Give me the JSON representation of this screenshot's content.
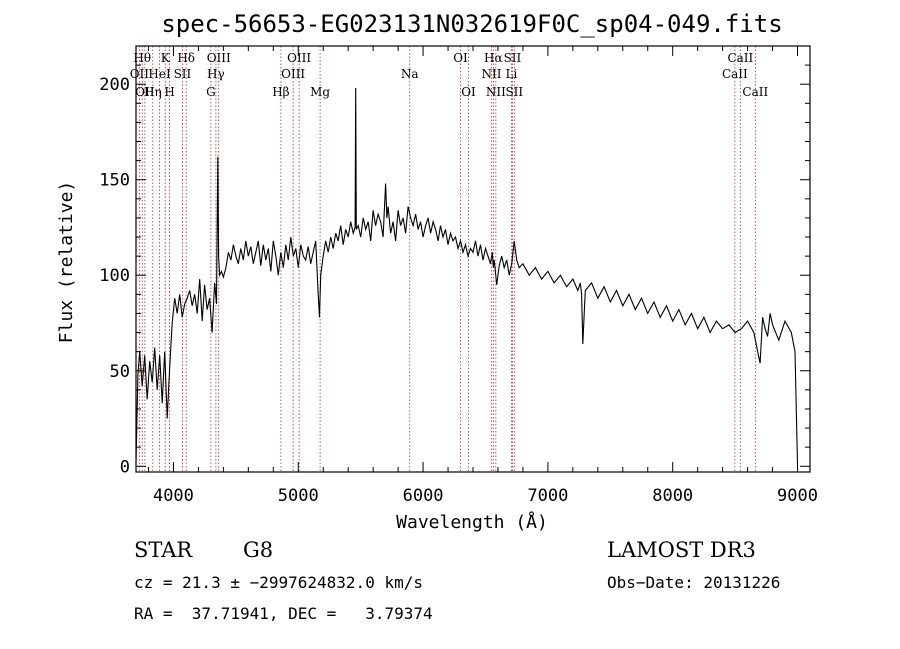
{
  "chart_data": {
    "type": "line",
    "title": "spec-56653-EG023131N032619F0C_sp04-049.fits",
    "xlabel": "Wavelength (Å)",
    "ylabel": "Flux (relative)",
    "xlim": [
      3700,
      9100
    ],
    "ylim": [
      -3,
      220
    ],
    "xticks": [
      4000,
      5000,
      6000,
      7000,
      8000,
      9000
    ],
    "yticks": [
      0,
      50,
      100,
      150,
      200
    ],
    "grid": false,
    "series": [
      {
        "x": [
          3700,
          3715,
          3730,
          3750,
          3770,
          3790,
          3810,
          3830,
          3850,
          3870,
          3890,
          3910,
          3930,
          3950,
          3970,
          3990,
          4010,
          4030,
          4050,
          4070,
          4090,
          4110,
          4130,
          4150,
          4170,
          4190,
          4210,
          4230,
          4250,
          4270,
          4290,
          4310,
          4330,
          4345,
          4355,
          4362,
          4370,
          4385,
          4400,
          4420,
          4440,
          4460,
          4480,
          4500,
          4520,
          4540,
          4560,
          4580,
          4600,
          4620,
          4640,
          4660,
          4680,
          4700,
          4720,
          4740,
          4760,
          4780,
          4800,
          4820,
          4840,
          4860,
          4880,
          4900,
          4920,
          4940,
          4960,
          4980,
          5000,
          5020,
          5040,
          5060,
          5080,
          5100,
          5120,
          5140,
          5160,
          5170,
          5180,
          5200,
          5220,
          5240,
          5260,
          5280,
          5300,
          5320,
          5340,
          5360,
          5380,
          5400,
          5420,
          5440,
          5455,
          5460,
          5465,
          5480,
          5500,
          5520,
          5540,
          5560,
          5580,
          5600,
          5620,
          5640,
          5660,
          5680,
          5700,
          5710,
          5720,
          5740,
          5760,
          5780,
          5800,
          5820,
          5840,
          5860,
          5880,
          5900,
          5920,
          5940,
          5960,
          5980,
          6000,
          6020,
          6040,
          6060,
          6080,
          6100,
          6120,
          6140,
          6160,
          6180,
          6200,
          6220,
          6240,
          6260,
          6280,
          6300,
          6320,
          6340,
          6360,
          6380,
          6400,
          6420,
          6440,
          6460,
          6480,
          6500,
          6520,
          6540,
          6555,
          6563,
          6570,
          6590,
          6610,
          6630,
          6650,
          6670,
          6690,
          6710,
          6730,
          6750,
          6770,
          6800,
          6850,
          6900,
          6950,
          7000,
          7050,
          7100,
          7150,
          7200,
          7240,
          7260,
          7270,
          7280,
          7300,
          7350,
          7400,
          7450,
          7500,
          7550,
          7600,
          7650,
          7700,
          7750,
          7800,
          7850,
          7900,
          7950,
          8000,
          8050,
          8100,
          8150,
          8200,
          8250,
          8300,
          8350,
          8400,
          8450,
          8500,
          8550,
          8600,
          8650,
          8700,
          8720,
          8740,
          8760,
          8780,
          8800,
          8850,
          8900,
          8950,
          8980,
          9000
        ],
        "values": [
          2,
          48,
          60,
          42,
          58,
          35,
          55,
          44,
          62,
          40,
          58,
          33,
          60,
          25,
          52,
          75,
          88,
          80,
          90,
          78,
          85,
          88,
          92,
          84,
          90,
          80,
          98,
          76,
          95,
          82,
          88,
          70,
          96,
          85,
          162,
          110,
          100,
          102,
          99,
          104,
          112,
          108,
          116,
          110,
          106,
          114,
          108,
          118,
          110,
          115,
          106,
          112,
          118,
          105,
          116,
          108,
          114,
          102,
          118,
          110,
          100,
          112,
          104,
          116,
          108,
          120,
          110,
          114,
          104,
          116,
          110,
          108,
          115,
          106,
          112,
          118,
          90,
          78,
          100,
          110,
          118,
          112,
          120,
          114,
          122,
          118,
          126,
          116,
          124,
          120,
          128,
          122,
          125,
          198,
          124,
          126,
          120,
          130,
          124,
          128,
          118,
          134,
          126,
          132,
          128,
          120,
          148,
          130,
          136,
          122,
          128,
          118,
          134,
          126,
          130,
          122,
          136,
          130,
          126,
          132,
          124,
          128,
          120,
          126,
          130,
          122,
          128,
          124,
          118,
          126,
          120,
          124,
          116,
          122,
          118,
          120,
          114,
          118,
          112,
          116,
          110,
          114,
          112,
          118,
          110,
          116,
          108,
          114,
          110,
          106,
          112,
          104,
          108,
          95,
          105,
          110,
          104,
          108,
          100,
          106,
          118,
          108,
          104,
          106,
          100,
          104,
          98,
          102,
          96,
          100,
          94,
          98,
          92,
          96,
          90,
          64,
          92,
          96,
          88,
          94,
          86,
          92,
          84,
          90,
          82,
          88,
          80,
          86,
          78,
          84,
          76,
          82,
          74,
          80,
          72,
          78,
          70,
          76,
          72,
          74,
          70,
          72,
          76,
          70,
          54,
          78,
          72,
          68,
          80,
          74,
          66,
          76,
          70,
          60,
          1
        ]
      }
    ],
    "line_markers": [
      {
        "label": "OII",
        "x": 3727,
        "row": 2
      },
      {
        "label": "Hθ",
        "x": 3750,
        "row": 1
      },
      {
        "label": "OII",
        "x": 3771,
        "row": 3
      },
      {
        "label": "Hη",
        "x": 3835,
        "row": 3
      },
      {
        "label": "HeI",
        "x": 3889,
        "row": 2
      },
      {
        "label": "K",
        "x": 3934,
        "row": 1
      },
      {
        "label": "H",
        "x": 3969,
        "row": 3
      },
      {
        "label": "SII",
        "x": 4072,
        "row": 2
      },
      {
        "label": "Hδ",
        "x": 4102,
        "row": 1
      },
      {
        "label": "G",
        "x": 4300,
        "row": 3
      },
      {
        "label": "Hγ",
        "x": 4340,
        "row": 2
      },
      {
        "label": "OIII",
        "x": 4363,
        "row": 1
      },
      {
        "label": "Hβ",
        "x": 4861,
        "row": 3
      },
      {
        "label": "OIII",
        "x": 4959,
        "row": 2
      },
      {
        "label": "OIII",
        "x": 5007,
        "row": 1
      },
      {
        "label": "Mg",
        "x": 5175,
        "row": 3
      },
      {
        "label": "Na",
        "x": 5893,
        "row": 2
      },
      {
        "label": "OI",
        "x": 6300,
        "row": 1
      },
      {
        "label": "OI",
        "x": 6364,
        "row": 3
      },
      {
        "label": "NII",
        "x": 6548,
        "row": 2
      },
      {
        "label": "Hα",
        "x": 6563,
        "row": 1
      },
      {
        "label": "NII",
        "x": 6583,
        "row": 3
      },
      {
        "label": "Li",
        "x": 6708,
        "row": 2
      },
      {
        "label": "SII",
        "x": 6716,
        "row": 1
      },
      {
        "label": "SII",
        "x": 6731,
        "row": 3
      },
      {
        "label": "CaII",
        "x": 8498,
        "row": 2
      },
      {
        "label": "CaII",
        "x": 8542,
        "row": 1
      },
      {
        "label": "CaII",
        "x": 8662,
        "row": 3
      }
    ]
  },
  "info": {
    "object_class": "STAR",
    "subclass": "G8",
    "survey": "LAMOST DR3",
    "cz_line": "cz = 21.3 ± −2997624832.0 km/s",
    "obs_date_line": "Obs−Date: 20131226",
    "radec_line": "RA =  37.71941, DEC =   3.79374"
  },
  "colors": {
    "spectrum": "#000000",
    "marker_line": "#b03030"
  }
}
